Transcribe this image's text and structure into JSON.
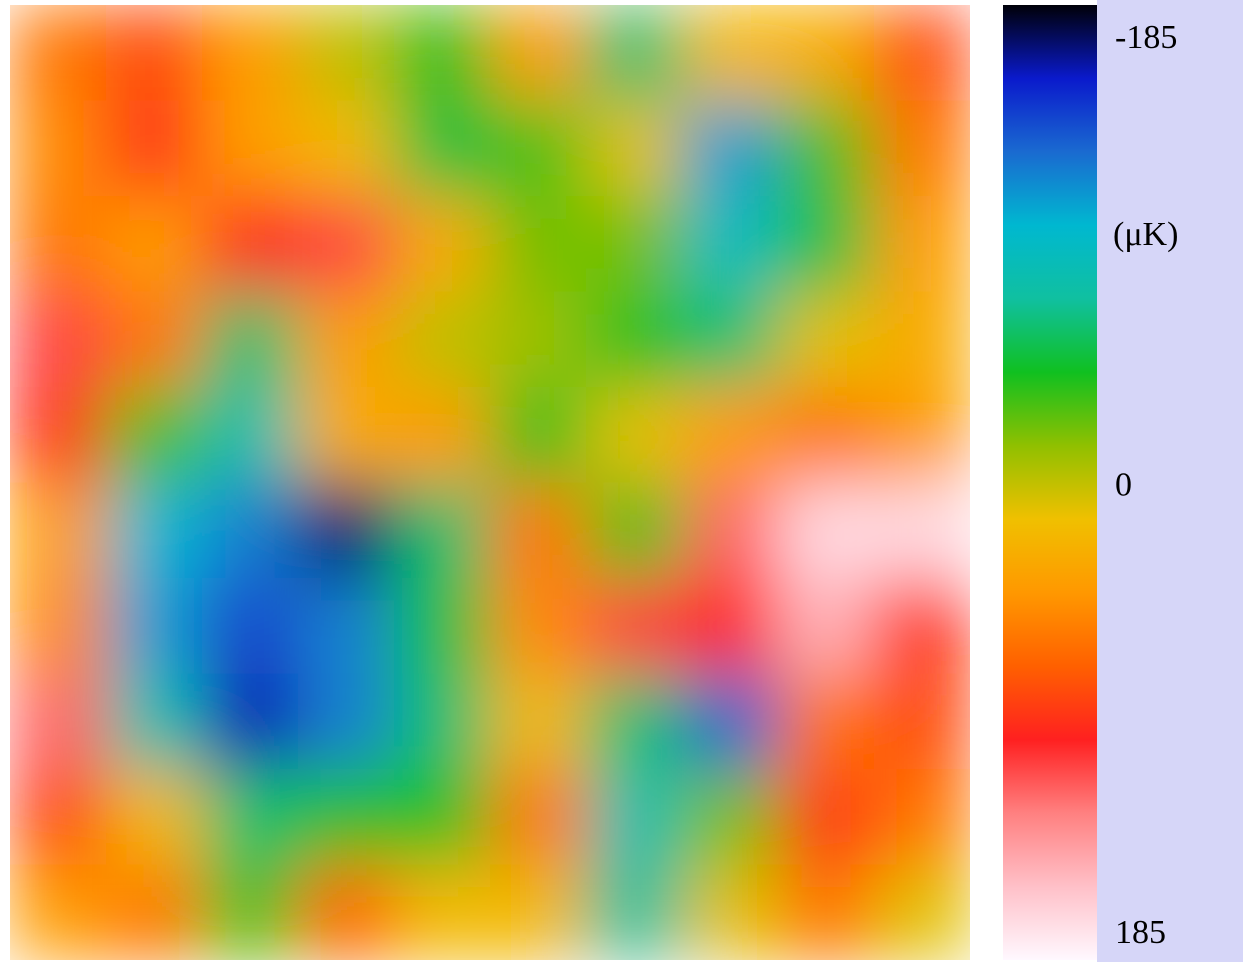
{
  "chart_data": {
    "type": "heatmap",
    "unit_label": "(μK)",
    "zlim": [
      -185,
      185
    ],
    "zticks": [
      -185,
      0,
      185
    ],
    "colorscale": [
      "#000008",
      "#0a1acc",
      "#1a6ad0",
      "#00b8d0",
      "#10c0a0",
      "#10c020",
      "#90c000",
      "#f0c000",
      "#ff9800",
      "#ff6000",
      "#ff2020",
      "#ff8080",
      "#ffc0c8",
      "#fff8ff"
    ],
    "z": [
      [
        60,
        80,
        40,
        0,
        -40,
        40,
        -60,
        20,
        30,
        80
      ],
      [
        50,
        90,
        40,
        20,
        -50,
        -30,
        10,
        -110,
        -30,
        60
      ],
      [
        60,
        40,
        100,
        110,
        30,
        -20,
        -20,
        -90,
        -50,
        40
      ],
      [
        110,
        60,
        -60,
        40,
        0,
        -10,
        -40,
        -60,
        10,
        30
      ],
      [
        90,
        -30,
        -80,
        30,
        40,
        -40,
        10,
        40,
        60,
        40
      ],
      [
        40,
        -100,
        -120,
        -170,
        -60,
        60,
        -30,
        120,
        170,
        170
      ],
      [
        50,
        -110,
        -140,
        -120,
        -50,
        50,
        110,
        100,
        150,
        90
      ],
      [
        120,
        -80,
        -160,
        -120,
        -60,
        20,
        -60,
        -130,
        60,
        80
      ],
      [
        80,
        20,
        -60,
        -40,
        -40,
        60,
        -80,
        -20,
        90,
        60
      ],
      [
        40,
        60,
        -30,
        70,
        20,
        20,
        -70,
        10,
        60,
        10
      ]
    ]
  }
}
